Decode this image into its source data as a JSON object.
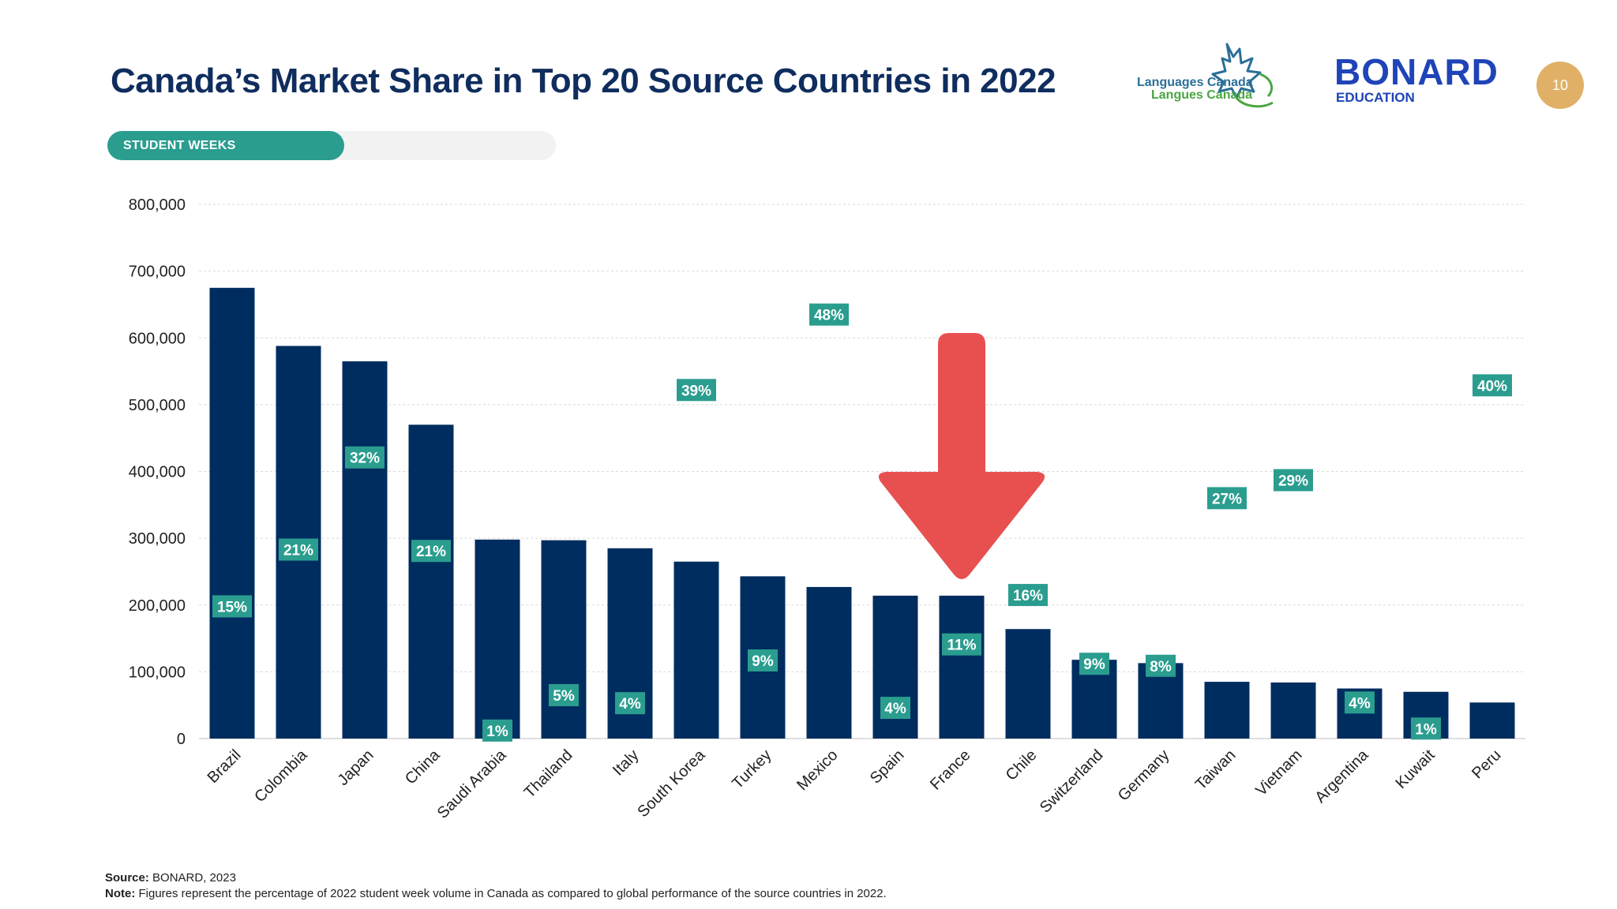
{
  "header": {
    "title": "Canada’s Market Share in Top 20 Source Countries in 2022",
    "tab_label": "STUDENT WEEKS",
    "logo_lc_line1": "Languages Canada",
    "logo_lc_line2": "Langues Canada",
    "logo_bonard": "BONARD",
    "logo_bonard_sub": "EDUCATION",
    "page_number": "10"
  },
  "colors": {
    "bar": "#002d5f",
    "label_bg": "#2a9d8f",
    "label_text": "#ffffff",
    "grid": "#d9d9d9",
    "arrow": "#e85050",
    "title": "#0f2d5e"
  },
  "chart_data": {
    "type": "bar",
    "title": "",
    "xlabel": "",
    "ylabel": "",
    "ylim": [
      0,
      800000
    ],
    "yticks": [
      0,
      100000,
      200000,
      300000,
      400000,
      500000,
      600000,
      700000,
      800000
    ],
    "ytick_labels": [
      "0",
      "100,000",
      "200,000",
      "300,000",
      "400,000",
      "500,000",
      "600,000",
      "700,000",
      "800,000"
    ],
    "grid": true,
    "categories": [
      "Brazil",
      "Colombia",
      "Japan",
      "China",
      "Saudi Arabia",
      "Thailand",
      "Italy",
      "South Korea",
      "Turkey",
      "Mexico",
      "Spain",
      "France",
      "Chile",
      "Switzerland",
      "Germany",
      "Taiwan",
      "Vietnam",
      "Argentina",
      "Kuwait",
      "Peru"
    ],
    "values": [
      675000,
      588000,
      565000,
      470000,
      298000,
      297000,
      285000,
      265000,
      243000,
      227000,
      214000,
      214000,
      164000,
      118000,
      113000,
      85000,
      84000,
      75000,
      70000,
      54000
    ],
    "market_share_labels": [
      "15%",
      "21%",
      "32%",
      "21%",
      "1%",
      "5%",
      "4%",
      "39%",
      "9%",
      "48%",
      "4%",
      "11%",
      "16%",
      "9%",
      "8%",
      "27%",
      "29%",
      "4%",
      "1%",
      "40%"
    ],
    "market_share_label_y": [
      198000,
      283000,
      421000,
      281000,
      12000,
      65000,
      53000,
      522000,
      117000,
      635000,
      46000,
      141000,
      215000,
      112000,
      109000,
      360000,
      387000,
      54000,
      15000,
      529000
    ],
    "highlight": {
      "category": "France",
      "marker": "down-arrow"
    }
  },
  "footer": {
    "source_label": "Source:",
    "source_text": " BONARD, 2023",
    "note_label": "Note:",
    "note_text": " Figures represent the percentage of 2022 student week volume in Canada as compared to global performance of the source countries in 2022."
  }
}
